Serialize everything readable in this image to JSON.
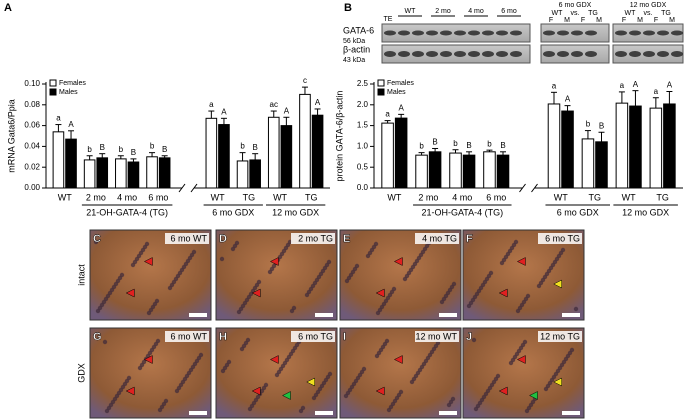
{
  "chart_data": [
    {
      "type": "bar",
      "panel": "A",
      "y_label": "mRNA Gata6/Ppia",
      "categories": [
        "WT",
        "2 mo",
        "4 mo",
        "6 mo",
        "WT",
        "TG",
        "WT",
        "TG"
      ],
      "groups": [
        "21-OH-GATA-4 (TG)",
        "6 mo GDX",
        "12 mo GDX"
      ],
      "series": [
        {
          "name": "Females",
          "color": "#ffffff",
          "values": [
            0.054,
            0.027,
            0.028,
            0.03,
            0.067,
            0.026,
            0.068,
            0.09
          ],
          "errors": [
            0.007,
            0.004,
            0.003,
            0.004,
            0.007,
            0.008,
            0.006,
            0.007
          ],
          "letters": [
            "a",
            "b",
            "b",
            "b",
            "a",
            "b",
            "ac",
            "c"
          ]
        },
        {
          "name": "Males",
          "color": "#000000",
          "values": [
            0.047,
            0.029,
            0.025,
            0.029,
            0.061,
            0.027,
            0.06,
            0.07
          ],
          "errors": [
            0.008,
            0.004,
            0.003,
            0.002,
            0.006,
            0.006,
            0.008,
            0.006
          ],
          "letters": [
            "A",
            "B",
            "B",
            "B",
            "A",
            "B",
            "A",
            "A"
          ]
        }
      ],
      "ylim": [
        0,
        0.1
      ],
      "yticks": [
        {
          "value": 0,
          "label": "0.00"
        },
        {
          "value": 0.02,
          "label": "0.02"
        },
        {
          "value": 0.04,
          "label": "0.04"
        },
        {
          "value": 0.06,
          "label": "0.06"
        },
        {
          "value": 0.08,
          "label": "0.08"
        },
        {
          "value": 0.1,
          "label": "0.10"
        }
      ]
    },
    {
      "type": "bar",
      "panel": "B",
      "y_label": "protein GATA-6/β-actin",
      "categories": [
        "WT",
        "2 mo",
        "4 mo",
        "6 mo",
        "WT",
        "TG",
        "WT",
        "TG"
      ],
      "groups": [
        "21-OH-GATA-4 (TG)",
        "6 mo GDX",
        "12 mo GDX"
      ],
      "series": [
        {
          "name": "Females",
          "color": "#ffffff",
          "values": [
            1.56,
            0.79,
            0.84,
            0.87,
            2.02,
            1.18,
            2.04,
            1.92
          ],
          "errors": [
            0.06,
            0.06,
            0.08,
            0.04,
            0.28,
            0.2,
            0.27,
            0.25
          ],
          "letters": [
            "a",
            "b",
            "b",
            "b",
            "a",
            "b",
            "a",
            "a"
          ]
        },
        {
          "name": "Males",
          "color": "#000000",
          "values": [
            1.68,
            0.87,
            0.79,
            0.79,
            1.85,
            1.11,
            1.97,
            2.02
          ],
          "errors": [
            0.09,
            0.08,
            0.08,
            0.08,
            0.13,
            0.23,
            0.37,
            0.3
          ],
          "letters": [
            "A",
            "B",
            "B",
            "B",
            "A",
            "B",
            "A",
            "A"
          ]
        }
      ],
      "ylim": [
        0,
        2.5
      ],
      "yticks": [
        {
          "value": 0,
          "label": "0.0"
        },
        0.5,
        {
          "value": 1,
          "label": "1.0"
        },
        1.5,
        {
          "value": 2,
          "label": "2.0"
        },
        2.5
      ]
    }
  ],
  "blot": {
    "gata6": "GATA-6",
    "gata6_kda": "56 kDa",
    "actin": "β-actin",
    "actin_kda": "43 kDa",
    "left_lanes": [
      "TE",
      "WT",
      "2 mo",
      "4 mo",
      "6 mo"
    ],
    "right_groups": [
      "6 mo GDX",
      "12 mo GDX"
    ],
    "right_sub": [
      "WT",
      "vs.",
      "TG"
    ],
    "sex": [
      "F",
      "M"
    ]
  },
  "micrographs": {
    "rows": [
      "intact",
      "GDX"
    ],
    "panels": [
      {
        "letter": "C",
        "caption": "6 mo WT"
      },
      {
        "letter": "D",
        "caption": "2 mo TG"
      },
      {
        "letter": "E",
        "caption": "4 mo TG"
      },
      {
        "letter": "F",
        "caption": "6 mo TG"
      },
      {
        "letter": "G",
        "caption": "6 mo WT"
      },
      {
        "letter": "H",
        "caption": "6 mo TG"
      },
      {
        "letter": "I",
        "caption": "12 mo WT"
      },
      {
        "letter": "J",
        "caption": "12 mo TG"
      }
    ]
  }
}
